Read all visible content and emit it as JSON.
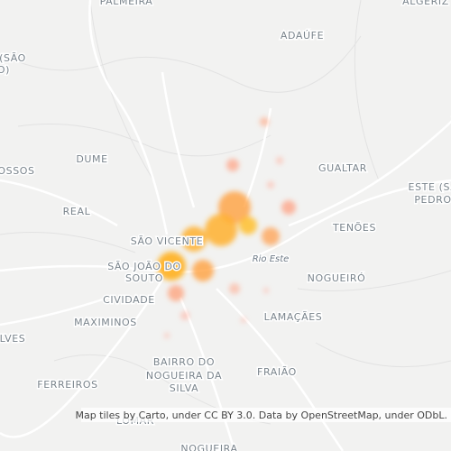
{
  "map": {
    "places": [
      "PALMEIRA",
      "ALGERIZ",
      "ADAÚFE",
      "(SÃO",
      "O)",
      "DUME",
      "GUALTAR",
      "OSSOS",
      "ESTE (SÃ",
      "PEDRO",
      "REAL",
      "TENÕES",
      "SÃO VICENTE",
      "SÃO JOÃO DO",
      "SOUTO",
      "NOGUEIRÓ",
      "CIVIDADE",
      "MAXIMINOS",
      "LAMAÇÃES",
      "LVES",
      "BAIRRO DO",
      "NOGUEIRA DA",
      "SILVA",
      "FRAIÃO",
      "FERREIROS",
      "LOMAR",
      "NOGUEIRA"
    ],
    "river": "Rio Este",
    "attribution": "Map tiles by Carto, under CC BY 3.0. Data by OpenStreetMap, under ODbL."
  }
}
